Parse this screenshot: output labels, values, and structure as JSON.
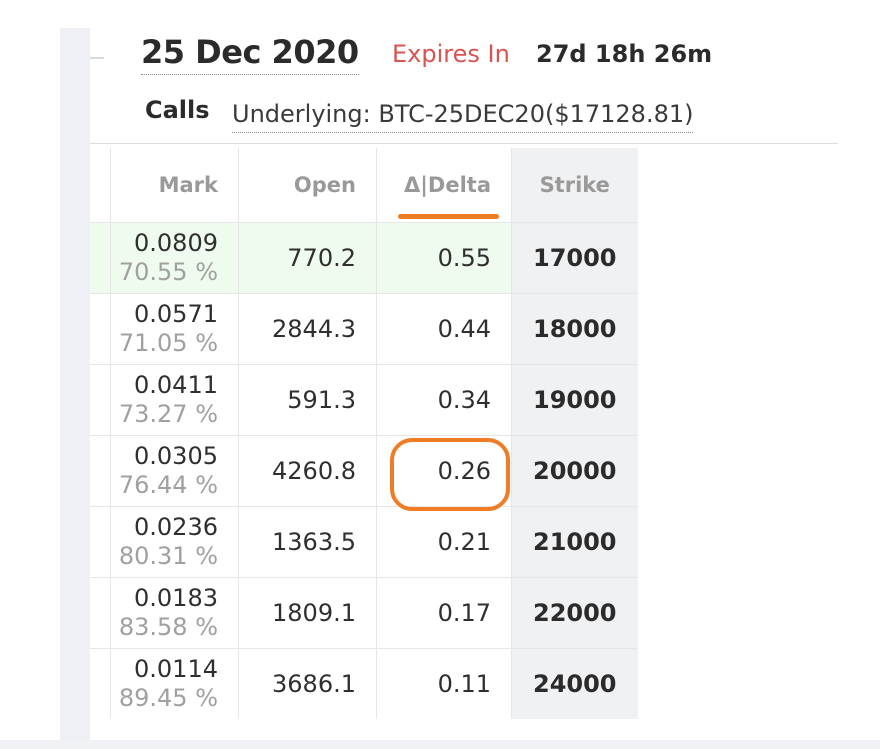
{
  "header": {
    "date": "25 Dec 2020",
    "expires_label": "Expires In",
    "expires_value": "27d 18h 26m",
    "calls_label": "Calls",
    "underlying": "Underlying: BTC-25DEC20($17128.81)"
  },
  "table": {
    "columns": [
      "Mark",
      "Open",
      "Δ|Delta",
      "Strike"
    ],
    "rows": [
      {
        "mark": "0.0809",
        "iv": "70.55 %",
        "open": "770.2",
        "delta": "0.55",
        "strike": "17000"
      },
      {
        "mark": "0.0571",
        "iv": "71.05 %",
        "open": "2844.3",
        "delta": "0.44",
        "strike": "18000"
      },
      {
        "mark": "0.0411",
        "iv": "73.27 %",
        "open": "591.3",
        "delta": "0.34",
        "strike": "19000"
      },
      {
        "mark": "0.0305",
        "iv": "76.44 %",
        "open": "4260.8",
        "delta": "0.26",
        "strike": "20000"
      },
      {
        "mark": "0.0236",
        "iv": "80.31 %",
        "open": "1363.5",
        "delta": "0.21",
        "strike": "21000"
      },
      {
        "mark": "0.0183",
        "iv": "83.58 %",
        "open": "1809.1",
        "delta": "0.17",
        "strike": "22000"
      },
      {
        "mark": "0.0114",
        "iv": "89.45 %",
        "open": "3686.1",
        "delta": "0.11",
        "strike": "24000"
      }
    ]
  },
  "colors": {
    "expires_label": "#d9534f",
    "annotation": "#f07c25",
    "in_the_money_row": "#f0fbef",
    "strike_column": "#f0f1f3"
  }
}
